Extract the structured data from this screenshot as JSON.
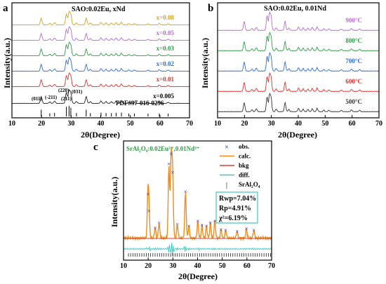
{
  "panels": {
    "a": {
      "letter": "a",
      "title": "SAO:0.02Eu, xNd"
    },
    "b": {
      "letter": "b",
      "title": "SAO:0.02Eu, 0.01Nd"
    },
    "c": {
      "letter": "c"
    }
  },
  "chart_data": [
    {
      "panel": "a",
      "type": "line",
      "title": "SAO:0.02Eu, xNd",
      "xlabel": "2θ(Degree)",
      "ylabel": "Intensity(a.u.)",
      "xlim": [
        10,
        70
      ],
      "xticks": [
        "10",
        "20",
        "30",
        "40",
        "50",
        "60",
        "70"
      ],
      "reference_label": "PDF#97-016-0296",
      "hkl_labels": [
        "(011)",
        "(-211)",
        "(220)",
        "(211)",
        "(031)"
      ],
      "series": [
        {
          "name": "x=0.005",
          "color": "#222222"
        },
        {
          "name": "x=0.01",
          "color": "#e0302c"
        },
        {
          "name": "x=0.02",
          "color": "#2e6bd6"
        },
        {
          "name": "x=0.03",
          "color": "#2e9b46"
        },
        {
          "name": "x=0.05",
          "color": "#b46cd6"
        },
        {
          "name": "x=0.08",
          "color": "#d6a11e"
        }
      ],
      "peak_positions": [
        19.9,
        22.8,
        24.4,
        28.4,
        29.3,
        29.9,
        31.8,
        35.1,
        36.5,
        40.1,
        41.8,
        43.6,
        45.2,
        47.0,
        49.5,
        51.4,
        56.0,
        59.8,
        62.8
      ]
    },
    {
      "panel": "b",
      "type": "line",
      "title": "SAO:0.02Eu, 0.01Nd",
      "xlabel": "2θ(Degree)",
      "ylabel": "Intensity(a.u.)",
      "xlim": [
        10,
        70
      ],
      "xticks": [
        "10",
        "20",
        "30",
        "40",
        "50",
        "60",
        "70"
      ],
      "series": [
        {
          "name": "500°C",
          "color": "#333333"
        },
        {
          "name": "600°C",
          "color": "#e0302c"
        },
        {
          "name": "700°C",
          "color": "#2e6bd6"
        },
        {
          "name": "800°C",
          "color": "#2e9b46"
        },
        {
          "name": "900°C",
          "color": "#b46cd6"
        }
      ],
      "peak_positions": [
        19.9,
        22.8,
        24.4,
        28.4,
        29.3,
        29.9,
        31.8,
        35.1,
        36.5,
        40.1,
        41.8,
        43.6,
        45.2,
        47.0,
        49.5,
        51.4,
        56.0,
        59.8,
        62.8
      ]
    },
    {
      "panel": "c",
      "type": "scatter",
      "title": "SrAl₂O₄:0.02Eu²⁺,0.01Nd³⁺",
      "xlabel": "2θ(Degree)",
      "ylabel": "Intensity(a.u.)",
      "xlim": [
        10,
        70
      ],
      "xticks": [
        "10",
        "20",
        "30",
        "40",
        "50",
        "60",
        "70"
      ],
      "legend": [
        {
          "name": "obs.",
          "color": "#2a2aa8",
          "marker": "×"
        },
        {
          "name": "calc.",
          "color": "#f08c1e",
          "marker": "line"
        },
        {
          "name": "bkg",
          "color": "#d84030",
          "marker": "line"
        },
        {
          "name": "diff.",
          "color": "#3cc8c0",
          "marker": "line"
        },
        {
          "name": "SrAl₂O₄",
          "color": "#000000",
          "marker": "|"
        }
      ],
      "stats": {
        "Rwp": "Rwp=7.04%",
        "Rp": "Rp=4.91%",
        "chi2": "χ²=6.19%"
      },
      "peaks": [
        {
          "x": 19.9,
          "h": 0.52
        },
        {
          "x": 20.3,
          "h": 0.32
        },
        {
          "x": 22.8,
          "h": 0.12
        },
        {
          "x": 24.4,
          "h": 0.18
        },
        {
          "x": 28.4,
          "h": 0.88
        },
        {
          "x": 29.3,
          "h": 1.0
        },
        {
          "x": 29.9,
          "h": 0.78
        },
        {
          "x": 31.8,
          "h": 0.16
        },
        {
          "x": 35.1,
          "h": 0.55
        },
        {
          "x": 36.5,
          "h": 0.14
        },
        {
          "x": 40.1,
          "h": 0.2
        },
        {
          "x": 41.8,
          "h": 0.15
        },
        {
          "x": 43.6,
          "h": 0.14
        },
        {
          "x": 45.2,
          "h": 0.18
        },
        {
          "x": 47.0,
          "h": 0.2
        },
        {
          "x": 49.5,
          "h": 0.1
        },
        {
          "x": 51.4,
          "h": 0.09
        },
        {
          "x": 56.0,
          "h": 0.08
        },
        {
          "x": 59.8,
          "h": 0.11
        },
        {
          "x": 62.8,
          "h": 0.09
        }
      ]
    }
  ]
}
